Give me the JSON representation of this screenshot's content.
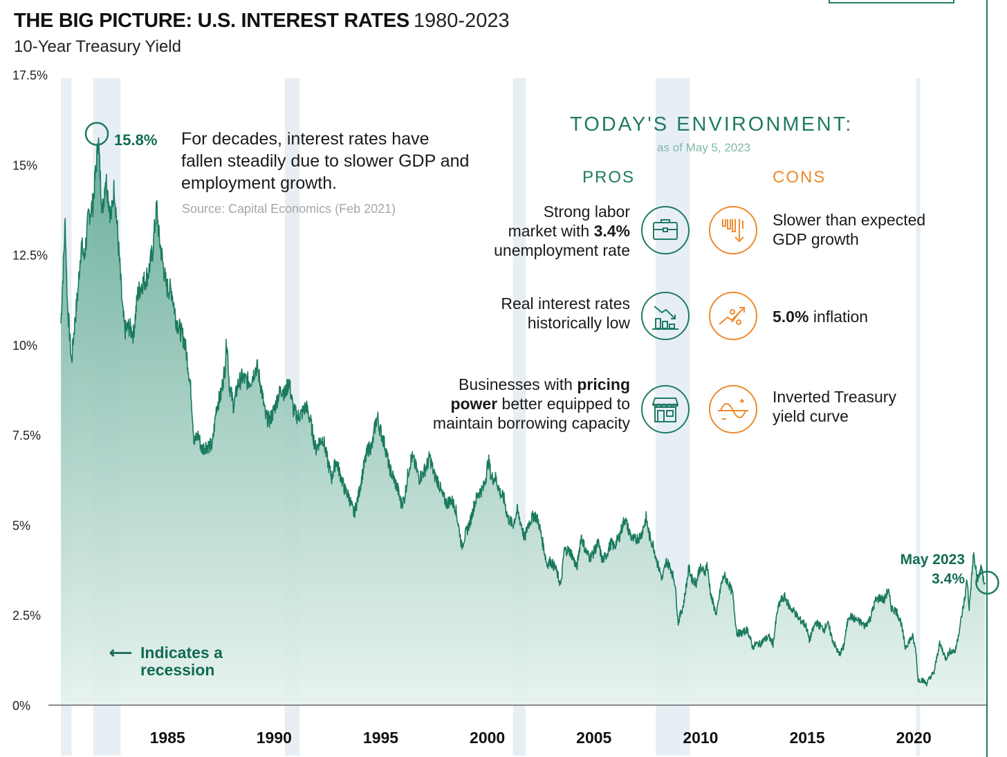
{
  "header": {
    "title": "THE BIG PICTURE: U.S. INTEREST RATES",
    "title_years": "1980-2023",
    "subtitle": "10-Year Treasury Yield"
  },
  "annotations": {
    "peak_label": "15.8%",
    "narrative": "For decades, interest rates have fallen steadily due to slower GDP and employment growth.",
    "source": "Source: Capital Economics (Feb 2021)",
    "recession_note": "Indicates a recession",
    "recession_arrow": "⟵",
    "latest_label": "May 2023",
    "latest_value": "3.4%"
  },
  "environment": {
    "title": "TODAY'S ENVIRONMENT:",
    "date": "as of May 5, 2023",
    "pros_heading": "PROS",
    "cons_heading": "CONS",
    "pros": [
      {
        "text_a": "Strong labor",
        "text_b_pre": "market with ",
        "text_b_bold": "3.4%",
        "text_c": "unemployment rate",
        "icon": "briefcase-icon"
      },
      {
        "text_a": "Real interest rates",
        "text_b": "historically low",
        "icon": "declining-chart-icon"
      },
      {
        "text_a_pre": "Businesses with ",
        "text_a_bold": "pricing",
        "text_b_bold": "power",
        "text_b_post": " better equipped to",
        "text_c": "maintain borrowing capacity",
        "icon": "storefront-icon"
      }
    ],
    "cons": [
      {
        "text_a": "Slower than expected",
        "text_b": "GDP growth",
        "icon": "falling-bars-icon"
      },
      {
        "text_bold": "5.0%",
        "text_post": " inflation",
        "icon": "percent-rising-icon"
      },
      {
        "text_a": "Inverted Treasury",
        "text_b": "yield curve",
        "icon": "inverted-curve-icon"
      }
    ]
  },
  "colors": {
    "line": "#1a7a5e",
    "fill_top": "#5fa894",
    "fill_bottom": "#e6f2ee",
    "recession_band": "#e7eff5",
    "pros": "#1f7a62",
    "cons": "#ee8a2d"
  },
  "chart_data": {
    "type": "area",
    "title": "THE BIG PICTURE: U.S. INTEREST RATES 1980-2023",
    "subtitle": "10-Year Treasury Yield",
    "x_unit": "year",
    "xlim": [
      1979.9,
      2023.4
    ],
    "ylim": [
      0,
      17.5
    ],
    "y_ticks": [
      0,
      2.5,
      5,
      7.5,
      10,
      12.5,
      15,
      17.5
    ],
    "y_tick_labels": [
      "0%",
      "2.5%",
      "5%",
      "7.5%",
      "10%",
      "12.5%",
      "15%",
      "17.5%"
    ],
    "x_ticks": [
      1985,
      1990,
      1995,
      2000,
      2005,
      2010,
      2015,
      2020
    ],
    "x_tick_labels": [
      "1985",
      "1990",
      "1995",
      "2000",
      "2005",
      "2010",
      "2015",
      "2020"
    ],
    "grid": false,
    "recessions": [
      [
        1980.0,
        1980.5
      ],
      [
        1981.5,
        1982.8
      ],
      [
        1990.5,
        1991.2
      ],
      [
        2001.2,
        2001.8
      ],
      [
        2007.9,
        2009.5
      ],
      [
        2020.1,
        2020.3
      ]
    ],
    "series": [
      {
        "values": [
          [
            1980.0,
            10.6
          ],
          [
            1980.1,
            12.0
          ],
          [
            1980.2,
            13.4
          ],
          [
            1980.3,
            11.2
          ],
          [
            1980.45,
            9.9
          ],
          [
            1980.5,
            9.5
          ],
          [
            1980.6,
            10.3
          ],
          [
            1980.8,
            11.5
          ],
          [
            1980.95,
            12.8
          ],
          [
            1981.1,
            12.4
          ],
          [
            1981.3,
            13.6
          ],
          [
            1981.5,
            13.9
          ],
          [
            1981.7,
            15.3
          ],
          [
            1981.75,
            15.8
          ],
          [
            1981.85,
            14.6
          ],
          [
            1981.95,
            13.7
          ],
          [
            1982.1,
            14.7
          ],
          [
            1982.2,
            14.2
          ],
          [
            1982.35,
            13.5
          ],
          [
            1982.5,
            14.4
          ],
          [
            1982.6,
            13.6
          ],
          [
            1982.75,
            12.3
          ],
          [
            1982.9,
            10.9
          ],
          [
            1983.0,
            10.4
          ],
          [
            1983.2,
            10.5
          ],
          [
            1983.4,
            10.3
          ],
          [
            1983.6,
            11.4
          ],
          [
            1983.8,
            11.7
          ],
          [
            1983.95,
            11.8
          ],
          [
            1984.1,
            12.0
          ],
          [
            1984.3,
            12.6
          ],
          [
            1984.45,
            13.6
          ],
          [
            1984.5,
            13.8
          ],
          [
            1984.6,
            13.0
          ],
          [
            1984.8,
            12.2
          ],
          [
            1984.95,
            11.6
          ],
          [
            1985.2,
            11.5
          ],
          [
            1985.4,
            10.7
          ],
          [
            1985.6,
            10.4
          ],
          [
            1985.8,
            10.1
          ],
          [
            1985.95,
            9.5
          ],
          [
            1986.1,
            8.7
          ],
          [
            1986.25,
            7.3
          ],
          [
            1986.45,
            7.5
          ],
          [
            1986.6,
            7.1
          ],
          [
            1986.8,
            7.2
          ],
          [
            1986.95,
            7.2
          ],
          [
            1987.1,
            7.2
          ],
          [
            1987.3,
            8.3
          ],
          [
            1987.5,
            8.6
          ],
          [
            1987.7,
            9.4
          ],
          [
            1987.78,
            10.2
          ],
          [
            1987.9,
            8.9
          ],
          [
            1988.1,
            8.3
          ],
          [
            1988.3,
            8.9
          ],
          [
            1988.5,
            9.1
          ],
          [
            1988.7,
            9.0
          ],
          [
            1988.9,
            9.0
          ],
          [
            1989.1,
            9.3
          ],
          [
            1989.2,
            9.4
          ],
          [
            1989.4,
            8.8
          ],
          [
            1989.6,
            8.0
          ],
          [
            1989.8,
            7.9
          ],
          [
            1990.0,
            8.2
          ],
          [
            1990.2,
            8.6
          ],
          [
            1990.4,
            8.8
          ],
          [
            1990.5,
            8.6
          ],
          [
            1990.7,
            9.0
          ],
          [
            1990.9,
            8.2
          ],
          [
            1991.1,
            8.0
          ],
          [
            1991.3,
            8.1
          ],
          [
            1991.5,
            8.3
          ],
          [
            1991.7,
            7.9
          ],
          [
            1991.95,
            7.1
          ],
          [
            1992.1,
            7.3
          ],
          [
            1992.3,
            7.4
          ],
          [
            1992.5,
            6.8
          ],
          [
            1992.7,
            6.3
          ],
          [
            1992.9,
            6.8
          ],
          [
            1993.1,
            6.4
          ],
          [
            1993.3,
            6.0
          ],
          [
            1993.5,
            5.8
          ],
          [
            1993.75,
            5.3
          ],
          [
            1993.95,
            5.8
          ],
          [
            1994.2,
            6.6
          ],
          [
            1994.4,
            7.1
          ],
          [
            1994.6,
            7.2
          ],
          [
            1994.75,
            7.8
          ],
          [
            1994.85,
            8.0
          ],
          [
            1994.95,
            7.7
          ],
          [
            1995.2,
            7.2
          ],
          [
            1995.4,
            6.6
          ],
          [
            1995.6,
            6.3
          ],
          [
            1995.8,
            6.0
          ],
          [
            1995.95,
            5.6
          ],
          [
            1996.1,
            5.7
          ],
          [
            1996.3,
            6.5
          ],
          [
            1996.45,
            6.9
          ],
          [
            1996.6,
            6.7
          ],
          [
            1996.8,
            6.3
          ],
          [
            1996.95,
            6.4
          ],
          [
            1997.2,
            6.7
          ],
          [
            1997.3,
            6.9
          ],
          [
            1997.5,
            6.4
          ],
          [
            1997.7,
            6.2
          ],
          [
            1997.9,
            5.8
          ],
          [
            1998.1,
            5.6
          ],
          [
            1998.3,
            5.7
          ],
          [
            1998.5,
            5.5
          ],
          [
            1998.7,
            4.8
          ],
          [
            1998.8,
            4.4
          ],
          [
            1998.95,
            4.7
          ],
          [
            1999.2,
            5.1
          ],
          [
            1999.4,
            5.6
          ],
          [
            1999.6,
            5.9
          ],
          [
            1999.8,
            6.0
          ],
          [
            1999.95,
            6.4
          ],
          [
            2000.05,
            6.8
          ],
          [
            2000.2,
            6.3
          ],
          [
            2000.4,
            6.3
          ],
          [
            2000.6,
            5.9
          ],
          [
            2000.8,
            5.7
          ],
          [
            2000.95,
            5.2
          ],
          [
            2001.2,
            5.0
          ],
          [
            2001.4,
            5.4
          ],
          [
            2001.6,
            5.0
          ],
          [
            2001.75,
            4.6
          ],
          [
            2001.9,
            5.0
          ],
          [
            2002.2,
            5.3
          ],
          [
            2002.4,
            5.1
          ],
          [
            2002.6,
            4.5
          ],
          [
            2002.8,
            3.9
          ],
          [
            2002.95,
            4.0
          ],
          [
            2003.2,
            3.8
          ],
          [
            2003.45,
            3.3
          ],
          [
            2003.6,
            4.3
          ],
          [
            2003.8,
            4.3
          ],
          [
            2003.95,
            4.2
          ],
          [
            2004.2,
            3.8
          ],
          [
            2004.4,
            4.7
          ],
          [
            2004.6,
            4.3
          ],
          [
            2004.8,
            4.1
          ],
          [
            2004.95,
            4.2
          ],
          [
            2005.2,
            4.5
          ],
          [
            2005.4,
            4.0
          ],
          [
            2005.6,
            4.2
          ],
          [
            2005.8,
            4.5
          ],
          [
            2005.95,
            4.4
          ],
          [
            2006.2,
            4.7
          ],
          [
            2006.45,
            5.2
          ],
          [
            2006.6,
            4.9
          ],
          [
            2006.8,
            4.6
          ],
          [
            2006.95,
            4.6
          ],
          [
            2007.2,
            4.7
          ],
          [
            2007.45,
            5.2
          ],
          [
            2007.6,
            4.7
          ],
          [
            2007.8,
            4.4
          ],
          [
            2007.95,
            4.0
          ],
          [
            2008.2,
            3.5
          ],
          [
            2008.4,
            4.0
          ],
          [
            2008.6,
            3.8
          ],
          [
            2008.8,
            3.4
          ],
          [
            2008.95,
            2.3
          ],
          [
            2009.2,
            2.8
          ],
          [
            2009.45,
            3.8
          ],
          [
            2009.6,
            3.5
          ],
          [
            2009.8,
            3.4
          ],
          [
            2009.95,
            3.8
          ],
          [
            2010.2,
            3.7
          ],
          [
            2010.3,
            3.9
          ],
          [
            2010.5,
            3.0
          ],
          [
            2010.75,
            2.5
          ],
          [
            2010.95,
            3.3
          ],
          [
            2011.1,
            3.6
          ],
          [
            2011.3,
            3.4
          ],
          [
            2011.5,
            3.1
          ],
          [
            2011.7,
            2.0
          ],
          [
            2011.95,
            2.0
          ],
          [
            2012.2,
            2.1
          ],
          [
            2012.45,
            1.6
          ],
          [
            2012.6,
            1.7
          ],
          [
            2012.8,
            1.7
          ],
          [
            2012.95,
            1.8
          ],
          [
            2013.2,
            1.9
          ],
          [
            2013.4,
            1.7
          ],
          [
            2013.6,
            2.6
          ],
          [
            2013.75,
            2.9
          ],
          [
            2013.95,
            3.0
          ],
          [
            2014.2,
            2.7
          ],
          [
            2014.4,
            2.6
          ],
          [
            2014.6,
            2.4
          ],
          [
            2014.8,
            2.3
          ],
          [
            2014.95,
            2.2
          ],
          [
            2015.1,
            1.8
          ],
          [
            2015.4,
            2.3
          ],
          [
            2015.6,
            2.2
          ],
          [
            2015.8,
            2.1
          ],
          [
            2015.95,
            2.3
          ],
          [
            2016.2,
            1.8
          ],
          [
            2016.5,
            1.4
          ],
          [
            2016.7,
            1.6
          ],
          [
            2016.95,
            2.5
          ],
          [
            2017.2,
            2.4
          ],
          [
            2017.5,
            2.3
          ],
          [
            2017.7,
            2.2
          ],
          [
            2017.95,
            2.4
          ],
          [
            2018.2,
            2.9
          ],
          [
            2018.45,
            3.0
          ],
          [
            2018.6,
            2.9
          ],
          [
            2018.8,
            3.2
          ],
          [
            2018.95,
            2.7
          ],
          [
            2019.2,
            2.6
          ],
          [
            2019.4,
            2.3
          ],
          [
            2019.6,
            1.6
          ],
          [
            2019.8,
            1.8
          ],
          [
            2019.95,
            1.9
          ],
          [
            2020.1,
            1.5
          ],
          [
            2020.2,
            0.7
          ],
          [
            2020.4,
            0.7
          ],
          [
            2020.6,
            0.6
          ],
          [
            2020.8,
            0.8
          ],
          [
            2020.95,
            0.9
          ],
          [
            2021.2,
            1.7
          ],
          [
            2021.3,
            1.6
          ],
          [
            2021.5,
            1.3
          ],
          [
            2021.7,
            1.5
          ],
          [
            2021.95,
            1.5
          ],
          [
            2022.2,
            2.3
          ],
          [
            2022.4,
            3.0
          ],
          [
            2022.5,
            3.5
          ],
          [
            2022.6,
            2.7
          ],
          [
            2022.75,
            3.8
          ],
          [
            2022.8,
            4.2
          ],
          [
            2022.95,
            3.6
          ],
          [
            2023.05,
            3.5
          ],
          [
            2023.15,
            3.9
          ],
          [
            2023.25,
            3.5
          ],
          [
            2023.35,
            3.4
          ]
        ]
      }
    ],
    "peak": {
      "x": 1981.75,
      "y": 15.8,
      "label": "15.8%"
    },
    "latest": {
      "x": 2023.35,
      "y": 3.4,
      "label": "3.4%"
    }
  }
}
